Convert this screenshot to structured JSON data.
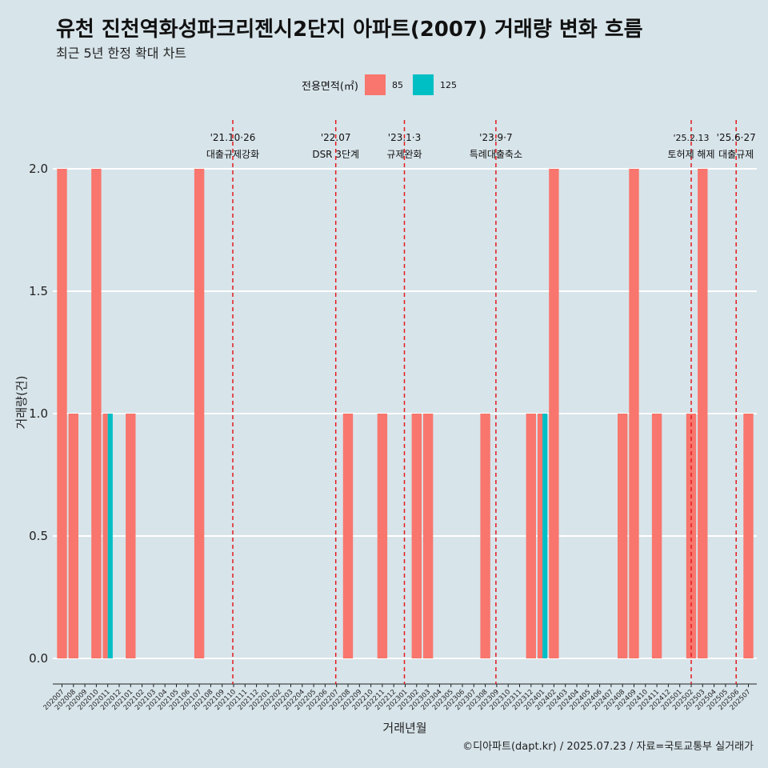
{
  "header": {
    "title": "유천 진천역화성파크리젠시2단지 아파트(2007) 거래량 변화 흐름",
    "subtitle": "최근 5년 한정 확대 차트"
  },
  "caption": "©디아파트(dapt.kr) / 2025.07.23 / 자료=국토교통부 실거래가",
  "legend": {
    "title": "전용면적(㎡)",
    "items": [
      {
        "label": "85",
        "color": "#f8766d"
      },
      {
        "label": "125",
        "color": "#00bfc4"
      }
    ]
  },
  "chart_data": {
    "type": "bar",
    "xlabel": "거래년월",
    "ylabel": "거래량(건)",
    "ylim": [
      0,
      2
    ],
    "yticks": [
      "0.0",
      "0.5",
      "1.0",
      "1.5",
      "2.0"
    ],
    "grid": true,
    "categories": [
      "202007",
      "202008",
      "202009",
      "202010",
      "202011",
      "202012",
      "202101",
      "202102",
      "202103",
      "202104",
      "202105",
      "202106",
      "202107",
      "202108",
      "202109",
      "202110",
      "202111",
      "202112",
      "202201",
      "202202",
      "202203",
      "202204",
      "202205",
      "202206",
      "202207",
      "202208",
      "202209",
      "202210",
      "202211",
      "202212",
      "202301",
      "202302",
      "202303",
      "202304",
      "202305",
      "202306",
      "202307",
      "202308",
      "202309",
      "202310",
      "202311",
      "202312",
      "202401",
      "202402",
      "202403",
      "202404",
      "202405",
      "202406",
      "202407",
      "202408",
      "202409",
      "202410",
      "202411",
      "202412",
      "202501",
      "202502",
      "202503",
      "202504",
      "202505",
      "202506",
      "202507"
    ],
    "series": [
      {
        "name": "85",
        "color": "#f8766d",
        "values": [
          2,
          1,
          0,
          2,
          1,
          0,
          1,
          0,
          0,
          0,
          0,
          0,
          2,
          0,
          0,
          0,
          0,
          0,
          0,
          0,
          0,
          0,
          0,
          0,
          0,
          1,
          0,
          0,
          1,
          0,
          0,
          1,
          1,
          0,
          0,
          0,
          0,
          1,
          0,
          0,
          0,
          1,
          1,
          2,
          0,
          0,
          0,
          0,
          0,
          1,
          2,
          0,
          1,
          0,
          0,
          1,
          2,
          0,
          0,
          0,
          1
        ]
      },
      {
        "name": "125",
        "color": "#00bfc4",
        "values": [
          0,
          0,
          0,
          0,
          1,
          0,
          0,
          0,
          0,
          0,
          0,
          0,
          0,
          0,
          0,
          0,
          0,
          0,
          0,
          0,
          0,
          0,
          0,
          0,
          0,
          0,
          0,
          0,
          0,
          0,
          0,
          0,
          0,
          0,
          0,
          0,
          0,
          0,
          0,
          0,
          0,
          0,
          1,
          0,
          0,
          0,
          0,
          0,
          0,
          0,
          0,
          0,
          0,
          0,
          0,
          0,
          0,
          0,
          0,
          0,
          0
        ]
      }
    ],
    "annotations": [
      {
        "x": "202110",
        "date": "'21.10·26",
        "text": "대출규제강화"
      },
      {
        "x": "202207",
        "date": "'22.07",
        "text": "DSR 3단계"
      },
      {
        "x": "202301",
        "date": "'23.1·3",
        "text": "규제완화"
      },
      {
        "x": "202309",
        "date": "'23.9·7",
        "text": "특례대출축소"
      },
      {
        "x": "202502",
        "date": "'25.2.13",
        "text": "토허제 해제"
      },
      {
        "x": "202506",
        "date": "'25.6·27",
        "text": "대출규제"
      }
    ]
  }
}
